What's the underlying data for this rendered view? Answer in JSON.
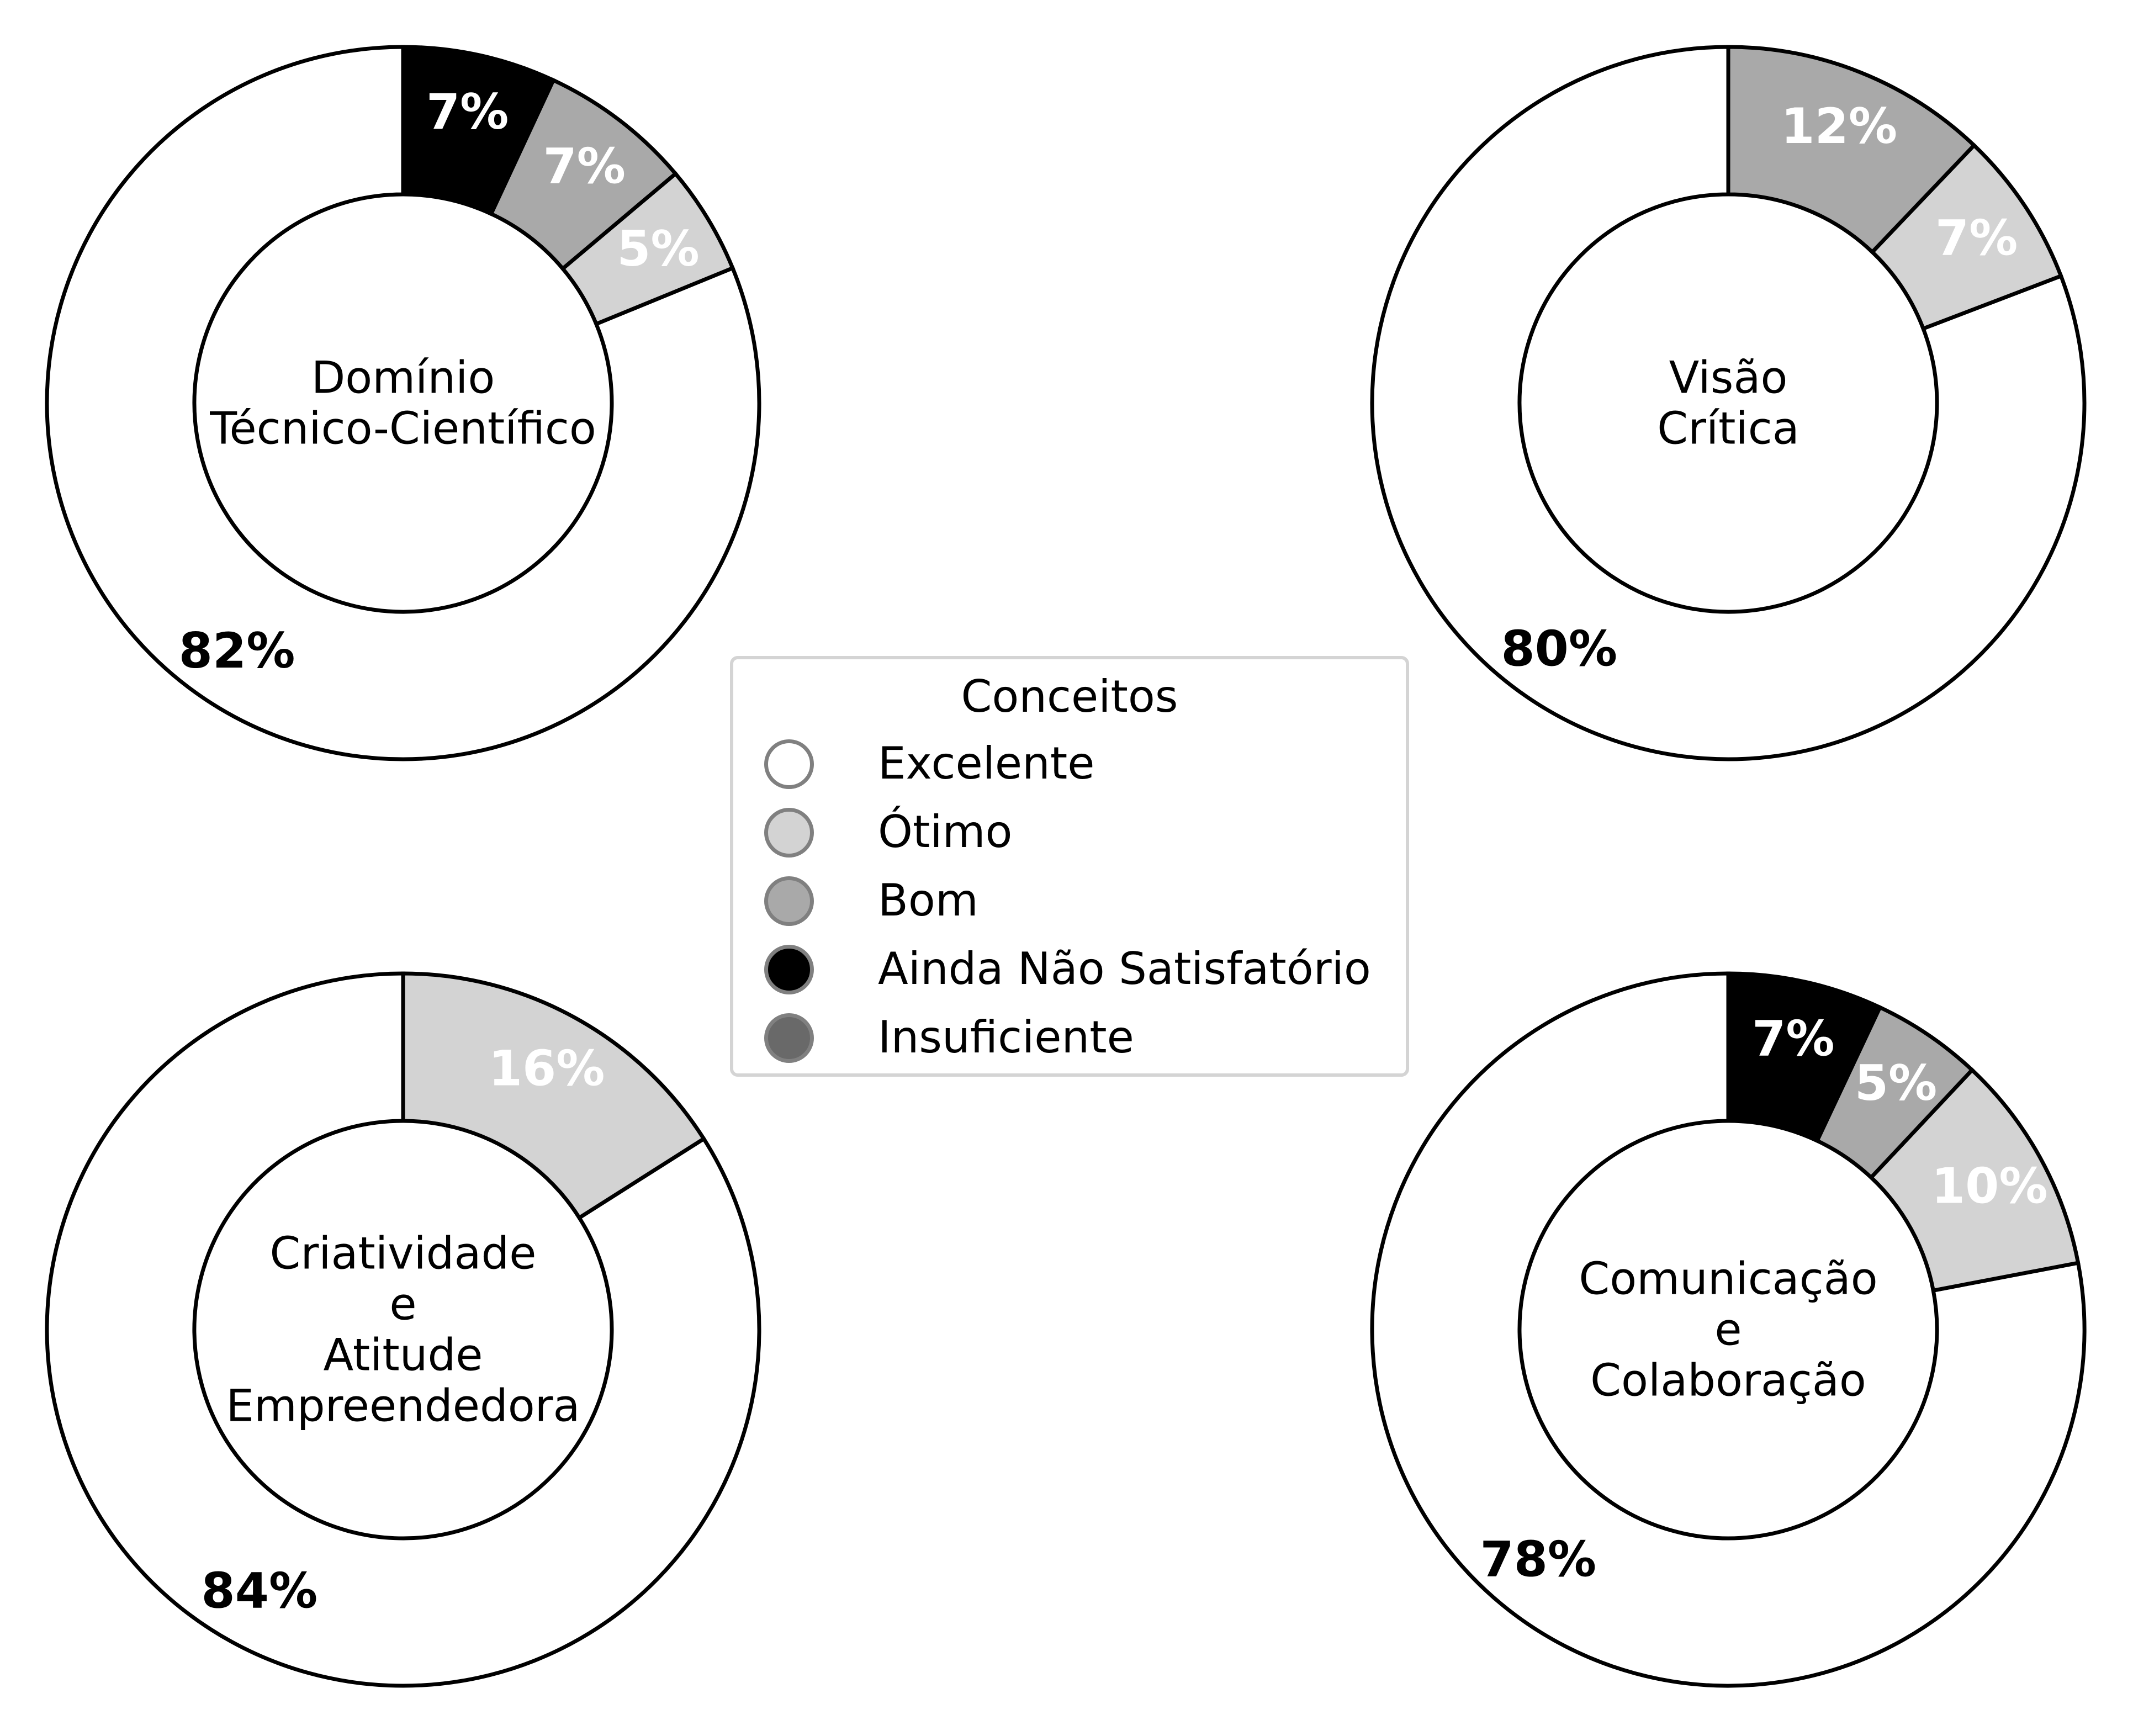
{
  "chart_data": [
    {
      "type": "pie",
      "center_label": [
        "Domínio",
        "Técnico-Científico"
      ],
      "slices": [
        {
          "category": "Excelente",
          "value": 82,
          "label": "82%"
        },
        {
          "category": "Ótimo",
          "value": 5,
          "label": "5%"
        },
        {
          "category": "Bom",
          "value": 7,
          "label": "7%"
        },
        {
          "category": "Ainda Não Satisfatório",
          "value": 7,
          "label": "7%"
        }
      ]
    },
    {
      "type": "pie",
      "center_label": [
        "Visão",
        "Crítica"
      ],
      "slices": [
        {
          "category": "Excelente",
          "value": 80,
          "label": "80%"
        },
        {
          "category": "Ótimo",
          "value": 7,
          "label": "7%"
        },
        {
          "category": "Bom",
          "value": 12,
          "label": "12%"
        }
      ]
    },
    {
      "type": "pie",
      "center_label": [
        "Criatividade",
        "e",
        "Atitude",
        "Empreendedora"
      ],
      "slices": [
        {
          "category": "Excelente",
          "value": 84,
          "label": "84%"
        },
        {
          "category": "Ótimo",
          "value": 16,
          "label": "16%"
        }
      ]
    },
    {
      "type": "pie",
      "center_label": [
        "Comunicação",
        "e",
        "Colaboração"
      ],
      "slices": [
        {
          "category": "Excelente",
          "value": 78,
          "label": "78%"
        },
        {
          "category": "Ótimo",
          "value": 10,
          "label": "10%"
        },
        {
          "category": "Bom",
          "value": 5,
          "label": "5%"
        },
        {
          "category": "Ainda Não Satisfatório",
          "value": 7,
          "label": "7%"
        }
      ]
    }
  ],
  "legend": {
    "title": "Conceitos",
    "items": [
      {
        "label": "Excelente",
        "color": "#ffffff"
      },
      {
        "label": "Ótimo",
        "color": "#d3d3d3"
      },
      {
        "label": "Bom",
        "color": "#a9a9a9"
      },
      {
        "label": "Ainda Não Satisfatório",
        "color": "#000000"
      },
      {
        "label": "Insuficiente",
        "color": "#696969"
      }
    ]
  },
  "colors": {
    "Excelente": "#ffffff",
    "Ótimo": "#d3d3d3",
    "Bom": "#a9a9a9",
    "Ainda Não Satisfatório": "#000000",
    "Insuficiente": "#696969"
  },
  "label_colors": {
    "Excelente": "#000000",
    "Ótimo": "#ffffff",
    "Bom": "#ffffff",
    "Ainda Não Satisfatório": "#ffffff",
    "Insuficiente": "#ffffff"
  }
}
